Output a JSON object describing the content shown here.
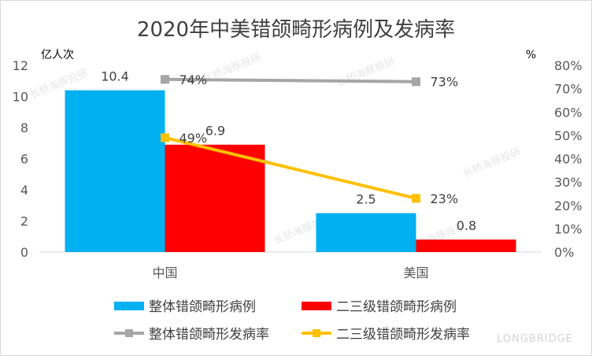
{
  "chart_data": {
    "type": "bar",
    "title": "2020年中美错颌畸形病例及发病率",
    "categories": [
      "中国",
      "美国"
    ],
    "y_left": {
      "label": "亿人次",
      "lim": [
        0,
        12
      ],
      "ticks": [
        "0",
        "2",
        "4",
        "6",
        "8",
        "10",
        "12"
      ]
    },
    "y_right": {
      "label": "%",
      "lim": [
        0,
        80
      ],
      "ticks": [
        "0%",
        "10%",
        "20%",
        "30%",
        "40%",
        "50%",
        "60%",
        "70%",
        "80%"
      ]
    },
    "bar_series": [
      {
        "name": "整体错颌畸形病例",
        "values": [
          10.4,
          2.5
        ],
        "labels": [
          "10.4",
          "2.5"
        ],
        "color": "#00b0f0"
      },
      {
        "name": "二三级错颌畸形病例",
        "values": [
          6.9,
          0.8
        ],
        "labels": [
          "6.9",
          "0.8"
        ],
        "color": "#ff0000"
      }
    ],
    "line_series": [
      {
        "name": "整体错颌畸形发病率",
        "values": [
          74,
          73
        ],
        "labels": [
          "74%",
          "73%"
        ],
        "color": "#a6a6a6"
      },
      {
        "name": "二三级错颌畸形发病率",
        "values": [
          49,
          23
        ],
        "labels": [
          "49%",
          "23%"
        ],
        "color": "#ffc000"
      }
    ],
    "grid": false,
    "legend": "bottom"
  },
  "watermark": {
    "text": "长桥海豚投研",
    "brand": "LONGBRIDGE"
  }
}
